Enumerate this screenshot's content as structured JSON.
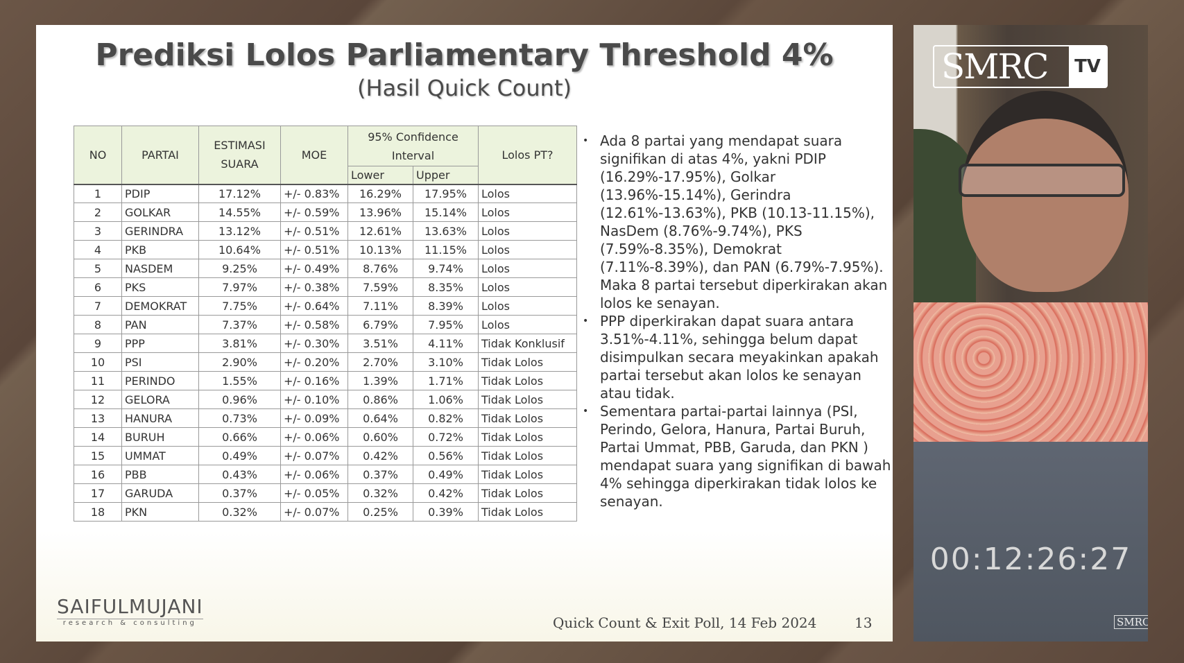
{
  "slide": {
    "title": "Prediksi Lolos Parliamentary Threshold 4%",
    "subtitle": "(Hasil Quick Count)",
    "table": {
      "headers": {
        "no": "NO",
        "partai": "PARTAI",
        "estimasi": "ESTIMASI SUARA",
        "moe": "MOE",
        "ci": "95% Confidence Interval",
        "lower": "Lower",
        "upper": "Upper",
        "lolos": "Lolos PT?"
      },
      "rows": [
        [
          "1",
          "PDIP",
          "17.12%",
          "+/- 0.83%",
          "16.29%",
          "17.95%",
          "Lolos"
        ],
        [
          "2",
          "GOLKAR",
          "14.55%",
          "+/- 0.59%",
          "13.96%",
          "15.14%",
          "Lolos"
        ],
        [
          "3",
          "GERINDRA",
          "13.12%",
          "+/- 0.51%",
          "12.61%",
          "13.63%",
          "Lolos"
        ],
        [
          "4",
          "PKB",
          "10.64%",
          "+/- 0.51%",
          "10.13%",
          "11.15%",
          "Lolos"
        ],
        [
          "5",
          "NASDEM",
          "9.25%",
          "+/- 0.49%",
          "8.76%",
          "9.74%",
          "Lolos"
        ],
        [
          "6",
          "PKS",
          "7.97%",
          "+/- 0.38%",
          "7.59%",
          "8.35%",
          "Lolos"
        ],
        [
          "7",
          "DEMOKRAT",
          "7.75%",
          "+/- 0.64%",
          "7.11%",
          "8.39%",
          "Lolos"
        ],
        [
          "8",
          "PAN",
          "7.37%",
          "+/- 0.58%",
          "6.79%",
          "7.95%",
          "Lolos"
        ],
        [
          "9",
          "PPP",
          "3.81%",
          "+/- 0.30%",
          "3.51%",
          "4.11%",
          "Tidak Konklusif"
        ],
        [
          "10",
          "PSI",
          "2.90%",
          "+/- 0.20%",
          "2.70%",
          "3.10%",
          "Tidak Lolos"
        ],
        [
          "11",
          "PERINDO",
          "1.55%",
          "+/- 0.16%",
          "1.39%",
          "1.71%",
          "Tidak Lolos"
        ],
        [
          "12",
          "GELORA",
          "0.96%",
          "+/- 0.10%",
          "0.86%",
          "1.06%",
          "Tidak Lolos"
        ],
        [
          "13",
          "HANURA",
          "0.73%",
          "+/- 0.09%",
          "0.64%",
          "0.82%",
          "Tidak Lolos"
        ],
        [
          "14",
          "BURUH",
          "0.66%",
          "+/- 0.06%",
          "0.60%",
          "0.72%",
          "Tidak Lolos"
        ],
        [
          "15",
          "UMMAT",
          "0.49%",
          "+/- 0.07%",
          "0.42%",
          "0.56%",
          "Tidak Lolos"
        ],
        [
          "16",
          "PBB",
          "0.43%",
          "+/- 0.06%",
          "0.37%",
          "0.49%",
          "Tidak Lolos"
        ],
        [
          "17",
          "GARUDA",
          "0.37%",
          "+/- 0.05%",
          "0.32%",
          "0.42%",
          "Tidak Lolos"
        ],
        [
          "18",
          "PKN",
          "0.32%",
          "+/- 0.07%",
          "0.25%",
          "0.39%",
          "Tidak Lolos"
        ]
      ]
    },
    "bullets": [
      "Ada 8 partai yang mendapat suara signifikan di atas 4%, yakni PDIP (16.29%-17.95%), Golkar (13.96%-15.14%), Gerindra (12.61%-13.63%), PKB (10.13-11.15%), NasDem (8.76%-9.74%), PKS (7.59%-8.35%), Demokrat (7.11%-8.39%), dan PAN (6.79%-7.95%). Maka 8 partai tersebut diperkirakan akan lolos ke senayan.",
      "PPP diperkirakan dapat suara antara 3.51%-4.11%, sehingga belum dapat disimpulkan secara meyakinkan apakah partai tersebut akan lolos ke senayan atau tidak.",
      "Sementara partai-partai lainnya (PSI, Perindo, Gelora, Hanura, Partai Buruh, Partai Ummat, PBB, Garuda, dan PKN ) mendapat suara yang signifikan di bawah 4% sehingga diperkirakan tidak lolos ke senayan."
    ],
    "logo": {
      "name": "SAIFULMUJANI",
      "tagline": "research & consulting"
    },
    "footer": "Quick Count & Exit Poll, 14 Feb 2024",
    "page_number": "13"
  },
  "video": {
    "brand": "SMRC",
    "brand_tv": "TV",
    "timer": "00:12:26:27"
  },
  "colors": {
    "header_bg": "#ecf3dd",
    "background": "#5e4a3e",
    "video_lower": "#4f5660"
  }
}
